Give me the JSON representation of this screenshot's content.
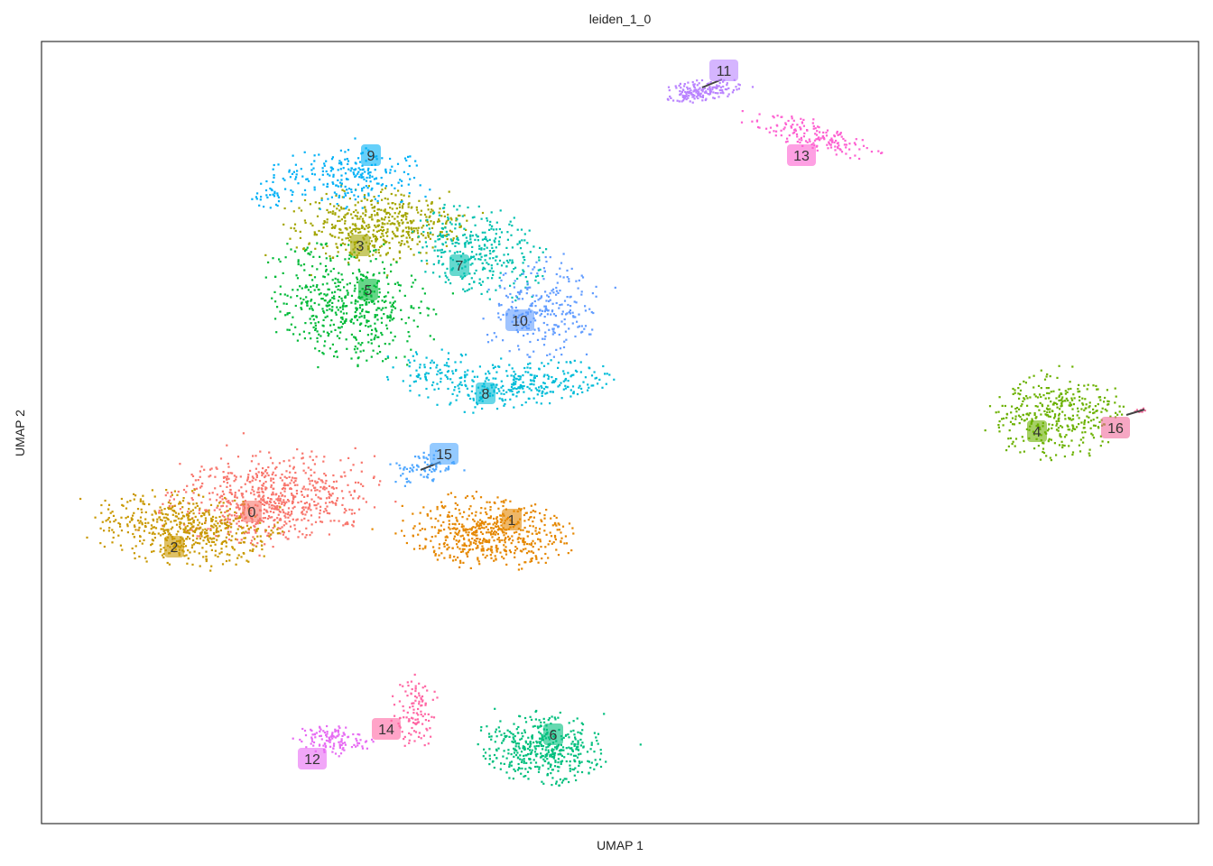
{
  "chart_data": {
    "type": "scatter",
    "title": "leiden_1_0",
    "xlabel": "UMAP 1",
    "ylabel": "UMAP 2",
    "grid": false,
    "axis_ticks": false,
    "legend": "none (labels placed on clusters)",
    "clusters": [
      {
        "name": "0",
        "color": "#F8766D"
      },
      {
        "name": "1",
        "color": "#E58700"
      },
      {
        "name": "2",
        "color": "#C99800"
      },
      {
        "name": "3",
        "color": "#A3A500"
      },
      {
        "name": "4",
        "color": "#6BB100"
      },
      {
        "name": "5",
        "color": "#00BA38"
      },
      {
        "name": "6",
        "color": "#00BF7D"
      },
      {
        "name": "7",
        "color": "#00C0AF"
      },
      {
        "name": "8",
        "color": "#00BCD8"
      },
      {
        "name": "9",
        "color": "#00B0F6"
      },
      {
        "name": "10",
        "color": "#619CFF"
      },
      {
        "name": "11",
        "color": "#B983FF"
      },
      {
        "name": "12",
        "color": "#E76BF3"
      },
      {
        "name": "13",
        "color": "#FD61D1"
      },
      {
        "name": "14",
        "color": "#FF67A4"
      },
      {
        "name": "15",
        "color": "#4DA6FF"
      },
      {
        "name": "16",
        "color": "#F06C9B"
      }
    ]
  }
}
